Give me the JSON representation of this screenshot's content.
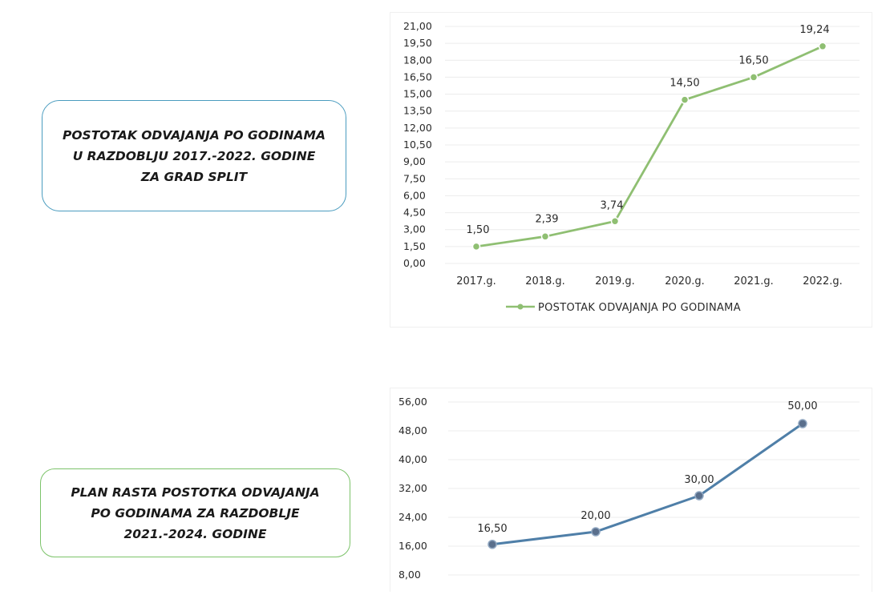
{
  "boxes": {
    "box1_text": "POSTOTAK ODVAJANJA PO GODINAMA U RAZDOBLJU 2017.-2022. GODINE ZA GRAD SPLIT",
    "box2_text": "PLAN RASTA POSTOTKA ODVAJANJA PO GODINAMA ZA RAZDOBLJE 2021.-2024. GODINE"
  },
  "chart_data": [
    {
      "type": "line",
      "categories": [
        "2017.g.",
        "2018.g.",
        "2019.g.",
        "2020.g.",
        "2021.g.",
        "2022.g."
      ],
      "series": [
        {
          "name": "POSTOTAK ODVAJANJA PO GODINAMA",
          "values": [
            1.5,
            2.39,
            3.74,
            14.5,
            16.5,
            19.24
          ],
          "color": "#8fbf72"
        }
      ],
      "data_labels": [
        "1,50",
        "2,39",
        "3,74",
        "14,50",
        "16,50",
        "19,24"
      ],
      "yticks": [
        "0,00",
        "1,50",
        "3,00",
        "4,50",
        "6,00",
        "7,50",
        "9,00",
        "10,50",
        "12,00",
        "13,50",
        "15,00",
        "16,50",
        "18,00",
        "19,50",
        "21,00"
      ],
      "ylim": [
        0,
        21
      ],
      "grid": true,
      "legend_position": "bottom"
    },
    {
      "type": "line",
      "series": [
        {
          "values": [
            16.5,
            20.0,
            30.0,
            50.0
          ],
          "color": "#4f7fa8"
        }
      ],
      "data_labels": [
        "16,50",
        "20,00",
        "30,00",
        "50,00"
      ],
      "yticks": [
        "8,00",
        "16,00",
        "24,00",
        "32,00",
        "40,00",
        "48,00",
        "56,00"
      ],
      "ylim": [
        0,
        56
      ],
      "grid": true
    }
  ]
}
